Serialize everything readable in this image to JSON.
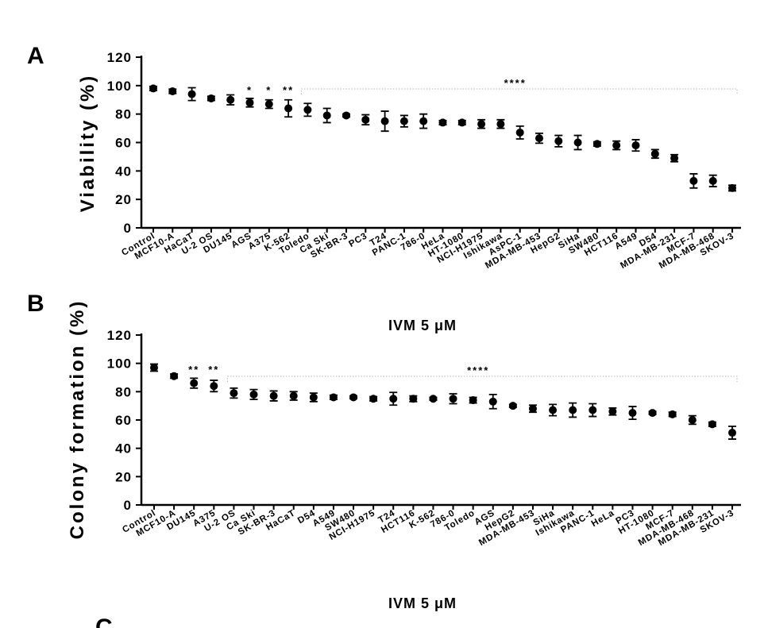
{
  "chart_data": [
    {
      "type": "scatter",
      "panel": "A",
      "ylabel": "Viability (%)",
      "xlabel": "IVM  5 μM",
      "ylim": [
        0,
        120
      ],
      "yticks": [
        0,
        20,
        40,
        60,
        80,
        100,
        120
      ],
      "categories": [
        "Control",
        "MCF10-A",
        "HaCaT",
        "U-2 OS",
        "DU145",
        "AGS",
        "A375",
        "K-562",
        "Toledo",
        "Ca Ski",
        "SK-BR-3",
        "PC3",
        "T24",
        "PANC-1",
        "786-0",
        "HeLa",
        "HT-1080",
        "NCI-H1975",
        "Ishikawa",
        "AsPC-1",
        "MDA-MB-453",
        "HepG2",
        "SiHa",
        "SW480",
        "HCT116",
        "A549",
        "D54",
        "MDA-MB-231",
        "MCF-7",
        "MDA-MB-468",
        "SKOV-3"
      ],
      "values": [
        98,
        96,
        94,
        91,
        90,
        88,
        87,
        84,
        83,
        79,
        79,
        76,
        75,
        75,
        75,
        74,
        74,
        73,
        73,
        67,
        63,
        61,
        60,
        59,
        58,
        58,
        52,
        49,
        33,
        33,
        28
      ],
      "errors": [
        1.5,
        1.5,
        4.5,
        1.5,
        3.5,
        3,
        3,
        6,
        4.5,
        5,
        1,
        3.5,
        7,
        4,
        5,
        1.5,
        1.5,
        3,
        3,
        4.5,
        3.5,
        4,
        5,
        1.5,
        3,
        4,
        3,
        2.5,
        5,
        4,
        2
      ],
      "significance": [
        {
          "label": "*",
          "index": 5
        },
        {
          "label": "*",
          "index": 6
        },
        {
          "label": "**",
          "index": 7
        },
        {
          "label": "****",
          "from": 8,
          "to": 30
        }
      ]
    },
    {
      "type": "scatter",
      "panel": "B",
      "ylabel": "Colony formation (%)",
      "xlabel": "IVM  5 μM",
      "ylim": [
        0,
        120
      ],
      "yticks": [
        0,
        20,
        40,
        60,
        80,
        100,
        120
      ],
      "categories": [
        "Control",
        "MCF10-A",
        "DU145",
        "A375",
        "U-2 OS",
        "Ca Ski",
        "SK-BR-3",
        "HaCaT",
        "D54",
        "A549",
        "SW480",
        "NCI-H1975",
        "T24",
        "HCT116",
        "K-562",
        "786-0",
        "Toledo",
        "AGS",
        "HepG2",
        "MDA-MB-453",
        "SiHa",
        "Ishikawa",
        "PANC-1",
        "HeLa",
        "PC3",
        "HT-1080",
        "MCF-7",
        "MDA-MB-468",
        "MDA-MB-231",
        "SKOV-3"
      ],
      "values": [
        97,
        91,
        86,
        84,
        79,
        78,
        77,
        77,
        76,
        76,
        76,
        75,
        75,
        75,
        75,
        75,
        74,
        73,
        70,
        68,
        67,
        67,
        67,
        66,
        65,
        65,
        64,
        60,
        57,
        51
      ],
      "errors": [
        2.5,
        1.5,
        3.5,
        4,
        3.5,
        3.5,
        3.5,
        3,
        3,
        1.5,
        1,
        1.5,
        4.5,
        2,
        1,
        3.5,
        2,
        5,
        1,
        2.5,
        4,
        5,
        4.5,
        2.5,
        4.5,
        1,
        1.5,
        3,
        1.5,
        4.5
      ],
      "significance": [
        {
          "label": "**",
          "index": 2
        },
        {
          "label": "**",
          "index": 3
        },
        {
          "label": "****",
          "from": 4,
          "to": 29
        }
      ]
    }
  ],
  "panels": {
    "a_letter": "A",
    "b_letter": "B",
    "c_letter": "C"
  }
}
